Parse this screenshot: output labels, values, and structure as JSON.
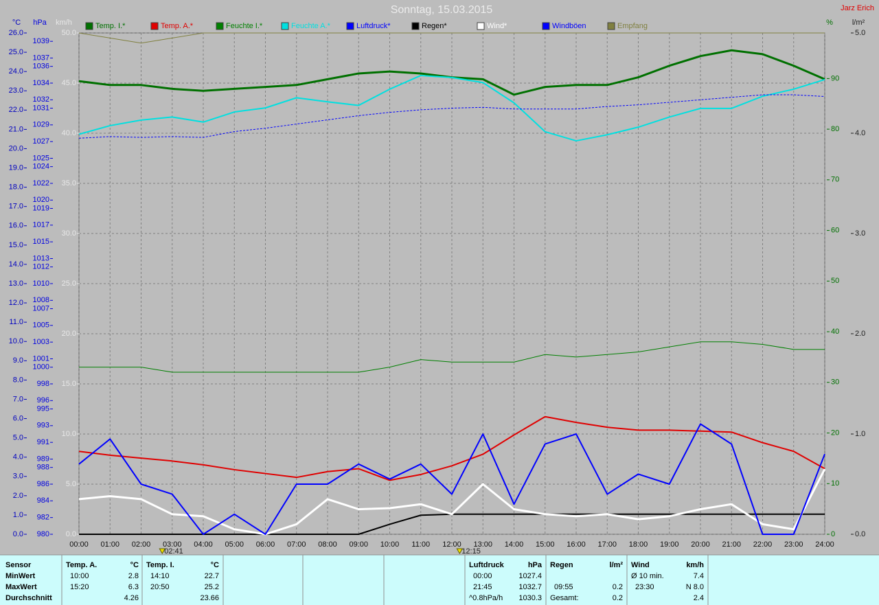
{
  "chart_data": {
    "type": "line",
    "title": "Sonntag, 15.03.2015",
    "author": "Jarz Erich",
    "x": [
      0,
      1,
      2,
      3,
      4,
      5,
      6,
      7,
      8,
      9,
      10,
      11,
      12,
      13,
      14,
      15,
      16,
      17,
      18,
      19,
      20,
      21,
      22,
      23,
      24
    ],
    "xlim": [
      0,
      24
    ],
    "xticks": [
      {
        "value": 0,
        "label": "00:00"
      },
      {
        "value": 1,
        "label": "01:00"
      },
      {
        "value": 2,
        "label": "02:00"
      },
      {
        "value": 3,
        "label": "03:00"
      },
      {
        "value": 4,
        "label": "04:00"
      },
      {
        "value": 5,
        "label": "05:00"
      },
      {
        "value": 6,
        "label": "06:00"
      },
      {
        "value": 7,
        "label": "07:00"
      },
      {
        "value": 8,
        "label": "08:00"
      },
      {
        "value": 9,
        "label": "09:00"
      },
      {
        "value": 10,
        "label": "10:00"
      },
      {
        "value": 11,
        "label": "11:00"
      },
      {
        "value": 12,
        "label": "12:00"
      },
      {
        "value": 13,
        "label": "13:00"
      },
      {
        "value": 14,
        "label": "14:00"
      },
      {
        "value": 15,
        "label": "15:00"
      },
      {
        "value": 16,
        "label": "16:00"
      },
      {
        "value": 17,
        "label": "17:00"
      },
      {
        "value": 18,
        "label": "18:00"
      },
      {
        "value": 19,
        "label": "19:00"
      },
      {
        "value": 20,
        "label": "20:00"
      },
      {
        "value": 21,
        "label": "21:00"
      },
      {
        "value": 22,
        "label": "22:00"
      },
      {
        "value": 23,
        "label": "23:00"
      },
      {
        "value": 24,
        "label": "24:00"
      }
    ],
    "ylabel": "°C",
    "ylim": [
      0,
      26
    ],
    "yticks": [
      {
        "value": 0,
        "label": "0.0"
      },
      {
        "value": 1,
        "label": "1.0"
      },
      {
        "value": 2,
        "label": "2.0"
      },
      {
        "value": 3,
        "label": "3.0"
      },
      {
        "value": 4,
        "label": "4.0"
      },
      {
        "value": 5,
        "label": "5.0"
      },
      {
        "value": 6,
        "label": "6.0"
      },
      {
        "value": 7,
        "label": "7.0"
      },
      {
        "value": 8,
        "label": "8.0"
      },
      {
        "value": 9,
        "label": "9.0"
      },
      {
        "value": 10,
        "label": "10.0"
      },
      {
        "value": 11,
        "label": "11.0"
      },
      {
        "value": 12,
        "label": "12.0"
      },
      {
        "value": 13,
        "label": "13.0"
      },
      {
        "value": 14,
        "label": "14.0"
      },
      {
        "value": 15,
        "label": "15.0"
      },
      {
        "value": 16,
        "label": "16.0"
      },
      {
        "value": 17,
        "label": "17.0"
      },
      {
        "value": 18,
        "label": "18.0"
      },
      {
        "value": 19,
        "label": "19.0"
      },
      {
        "value": 20,
        "label": "20.0"
      },
      {
        "value": 21,
        "label": "21.0"
      },
      {
        "value": 22,
        "label": "22.0"
      },
      {
        "value": 23,
        "label": "23.0"
      },
      {
        "value": 24,
        "label": "24.0"
      },
      {
        "value": 25,
        "label": "25.0"
      },
      {
        "value": 26,
        "label": "26.0"
      }
    ],
    "y2label": "hPa",
    "y2lim": [
      980,
      1040
    ],
    "y2ticks": [
      980,
      982,
      984,
      986,
      988,
      989,
      991,
      993,
      995,
      996,
      998,
      1000,
      1001,
      1003,
      1005,
      1007,
      1008,
      1010,
      1012,
      1013,
      1015,
      1017,
      1019,
      1020,
      1022,
      1024,
      1025,
      1027,
      1029,
      1031,
      1032,
      1034,
      1036,
      1037,
      1039
    ],
    "y3label": "km/h",
    "y3lim": [
      0,
      50
    ],
    "y3ticks": [
      {
        "value": 0,
        "label": "0.0"
      },
      {
        "value": 5,
        "label": "5.0"
      },
      {
        "value": 10,
        "label": "10.0"
      },
      {
        "value": 15,
        "label": "15.0"
      },
      {
        "value": 20,
        "label": "20.0"
      },
      {
        "value": 25,
        "label": "25.0"
      },
      {
        "value": 30,
        "label": "30.0"
      },
      {
        "value": 35,
        "label": "35.0"
      },
      {
        "value": 40,
        "label": "40.0"
      },
      {
        "value": 45,
        "label": "45.0"
      },
      {
        "value": 50,
        "label": "50.0"
      }
    ],
    "y4label": "%",
    "y4lim": [
      0,
      99
    ],
    "y4ticks": [
      0,
      10,
      20,
      30,
      40,
      50,
      60,
      70,
      80,
      90
    ],
    "y5label": "l/m²",
    "y5lim": [
      0,
      5
    ],
    "y5ticks": [
      {
        "value": 0,
        "label": "0.0"
      },
      {
        "value": 1,
        "label": "1.0"
      },
      {
        "value": 2,
        "label": "2.0"
      },
      {
        "value": 3,
        "label": "3.0"
      },
      {
        "value": 4,
        "label": "4.0"
      },
      {
        "value": 5,
        "label": "5.0"
      }
    ],
    "grid": true,
    "annotations": [
      {
        "x": 2.68,
        "label": "02:41"
      },
      {
        "x": 12.25,
        "label": "12:15"
      }
    ],
    "series": [
      {
        "name": "Temp. I.*",
        "color": "#007000",
        "axis": "y",
        "width": 3,
        "values": [
          23.5,
          23.3,
          23.3,
          23.1,
          23.0,
          23.1,
          23.2,
          23.3,
          23.6,
          23.9,
          24.0,
          23.9,
          23.7,
          23.6,
          22.8,
          23.2,
          23.3,
          23.3,
          23.7,
          24.3,
          24.8,
          25.1,
          24.9,
          24.3,
          23.6
        ]
      },
      {
        "name": "Temp. A.*",
        "color": "#e00000",
        "axis": "y",
        "width": 2,
        "values": [
          4.3,
          4.1,
          3.95,
          3.8,
          3.6,
          3.35,
          3.15,
          2.95,
          3.25,
          3.4,
          2.8,
          3.1,
          3.55,
          4.15,
          5.15,
          6.1,
          5.8,
          5.55,
          5.4,
          5.4,
          5.35,
          5.3,
          4.75,
          4.3,
          3.4
        ]
      },
      {
        "name": "Feuchte I.*",
        "color": "#008000",
        "axis": "y4",
        "width": 1,
        "values": [
          33,
          33,
          33,
          32,
          32,
          32,
          32,
          32,
          32,
          32,
          33,
          34.5,
          34,
          34,
          34,
          35.5,
          35,
          35.5,
          36,
          37,
          38,
          38,
          37.5,
          36.5,
          36.5
        ]
      },
      {
        "name": "Feuchte A.*",
        "color": "#00e0e0",
        "axis": "y4",
        "width": 2,
        "values": [
          79,
          80.7,
          81.8,
          82.4,
          81.4,
          83.4,
          84.2,
          86.2,
          85.4,
          84.7,
          87.9,
          90.6,
          90.2,
          89.2,
          85.2,
          79.5,
          77.7,
          78.9,
          80.4,
          82.4,
          84.1,
          84.1,
          86.5,
          87.9,
          89.8
        ]
      },
      {
        "name": "Luftdruck*",
        "color": "#0000ff",
        "axis": "y2",
        "width": 1,
        "dashed": true,
        "values": [
          1027.4,
          1027.6,
          1027.5,
          1027.6,
          1027.5,
          1028.2,
          1028.6,
          1029.1,
          1029.6,
          1030.1,
          1030.5,
          1030.8,
          1031.0,
          1031.1,
          1030.9,
          1030.9,
          1030.9,
          1031.2,
          1031.4,
          1031.7,
          1032.0,
          1032.3,
          1032.6,
          1032.6,
          1032.4
        ]
      },
      {
        "name": "Regen*",
        "color": "#000000",
        "axis": "y5",
        "width": 2,
        "values": [
          0,
          0,
          0,
          0,
          0,
          0,
          0,
          0,
          0,
          0,
          0.1,
          0.19,
          0.2,
          0.2,
          0.2,
          0.2,
          0.2,
          0.2,
          0.2,
          0.2,
          0.2,
          0.2,
          0.2,
          0.2,
          0.2
        ]
      },
      {
        "name": "Wind*",
        "color": "#ffffff",
        "axis": "y3",
        "width": 3,
        "values": [
          3.5,
          3.8,
          3.5,
          2.0,
          1.8,
          0.5,
          0,
          1.0,
          3.5,
          2.5,
          2.6,
          3.0,
          2.0,
          5.0,
          2.5,
          2.0,
          1.8,
          2.0,
          1.5,
          1.8,
          2.5,
          3.0,
          1.0,
          0.5,
          6.5
        ]
      },
      {
        "name": "Windböen",
        "color": "#0000ff",
        "axis": "y3",
        "width": 2,
        "values": [
          7,
          9.5,
          5,
          4,
          0,
          2,
          0,
          5,
          5,
          7,
          5.5,
          7,
          4,
          10,
          3,
          9,
          10,
          4,
          6,
          5,
          11,
          9,
          0,
          0,
          8
        ]
      },
      {
        "name": "Empfang",
        "color": "#808040",
        "axis": "y4",
        "width": 1,
        "values": [
          99,
          98,
          97,
          98,
          99,
          99,
          99,
          99,
          99,
          99,
          99,
          99,
          99,
          99,
          99,
          99,
          99,
          99,
          99,
          99,
          99,
          99,
          99,
          99,
          99
        ]
      }
    ]
  },
  "table": {
    "row_labels": [
      "Sensor",
      "MinWert",
      "MaxWert",
      "Durchschnitt"
    ],
    "blocks": [
      {
        "name": "Temp. A.",
        "unit": "°C",
        "rows": [
          [
            "10:00",
            2.8
          ],
          [
            "15:20",
            6.3
          ],
          [
            null,
            4.26
          ]
        ]
      },
      {
        "name": "Temp. I.",
        "unit": "°C",
        "rows": [
          [
            "14:10",
            22.7
          ],
          [
            "20:50",
            25.2
          ],
          [
            null,
            23.66
          ]
        ]
      },
      {
        "name": "Luftdruck",
        "unit": "hPa",
        "rows": [
          [
            "00:00",
            1027.4
          ],
          [
            "21:45",
            1032.7
          ],
          [
            "^0.8hPa/h",
            1030.3
          ]
        ]
      },
      {
        "name": "Regen",
        "unit": "l/m²",
        "rows": [
          [
            null,
            null
          ],
          [
            "09:55",
            0.2
          ],
          [
            "Gesamt:",
            0.2
          ]
        ]
      },
      {
        "name": "Wind",
        "unit": "km/h",
        "rows": [
          [
            "Ø 10 min.",
            7.4
          ],
          [
            "23:30",
            "N 8.0"
          ],
          [
            null,
            2.4
          ]
        ]
      }
    ]
  }
}
